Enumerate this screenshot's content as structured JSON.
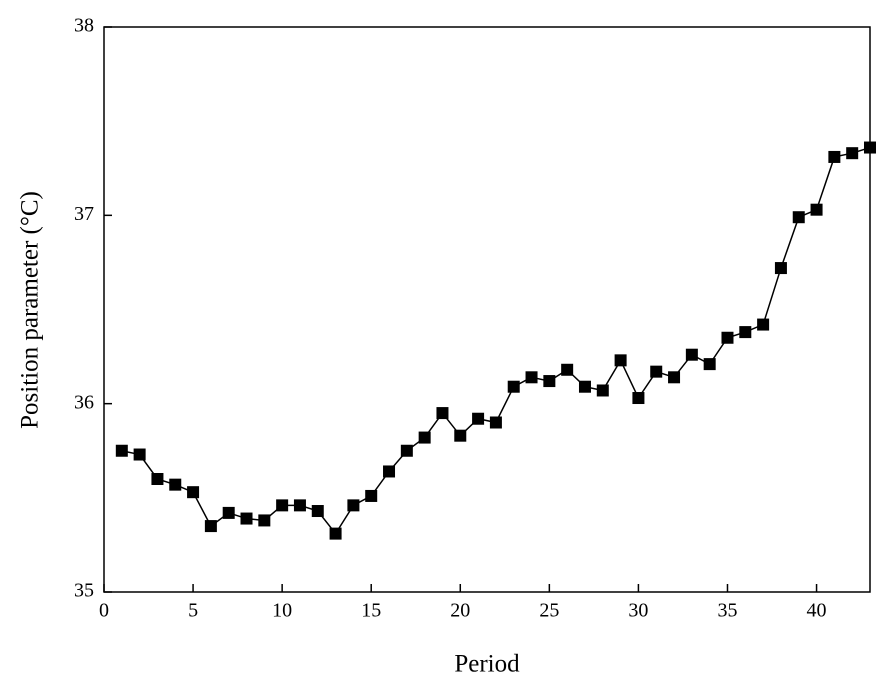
{
  "chart_data": {
    "type": "line",
    "x_label": "Period",
    "y_label": "Position parameter (°C)",
    "x": [
      1,
      2,
      3,
      4,
      5,
      6,
      7,
      8,
      9,
      10,
      11,
      12,
      13,
      14,
      15,
      16,
      17,
      18,
      19,
      20,
      21,
      22,
      23,
      24,
      25,
      26,
      27,
      28,
      29,
      30,
      31,
      32,
      33,
      34,
      35,
      36,
      37,
      38,
      39,
      40,
      41,
      42,
      43
    ],
    "series": [
      {
        "color": "#000000",
        "marker": "square",
        "values": [
          35.75,
          35.73,
          35.6,
          35.57,
          35.53,
          35.35,
          35.42,
          35.39,
          35.38,
          35.46,
          35.46,
          35.43,
          35.31,
          35.46,
          35.51,
          35.64,
          35.75,
          35.82,
          35.95,
          35.83,
          35.92,
          35.9,
          36.09,
          36.14,
          36.12,
          36.18,
          36.09,
          36.07,
          36.23,
          36.03,
          36.17,
          36.14,
          36.26,
          36.21,
          36.35,
          36.38,
          36.42,
          36.72,
          36.99,
          37.03,
          37.31,
          37.33,
          37.36
        ]
      }
    ],
    "xlim": [
      0,
      43
    ],
    "xticks": [
      0,
      5,
      10,
      15,
      20,
      25,
      30,
      35,
      40
    ],
    "ylim": [
      35,
      38
    ],
    "yticks": [
      35,
      36,
      37,
      38
    ],
    "grid": false
  }
}
